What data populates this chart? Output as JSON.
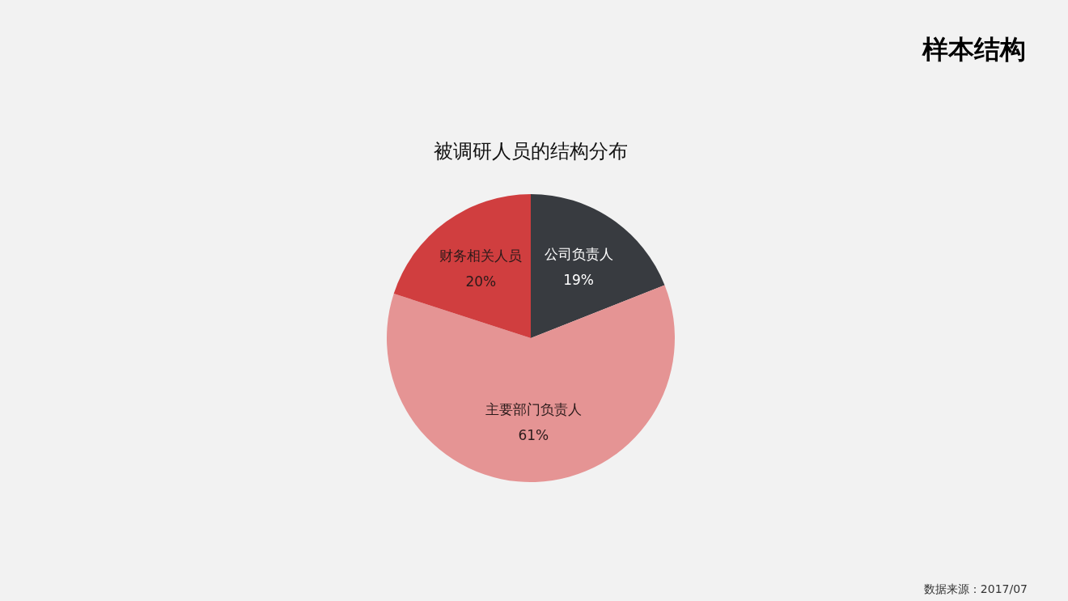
{
  "chart_data": {
    "type": "pie",
    "title": "被调研人员的结构分布",
    "categories": [
      "公司负责人",
      "主要部门负责人",
      "财务相关人员"
    ],
    "values": [
      19,
      61,
      20
    ],
    "colors": [
      "#383b40",
      "#e59494",
      "#d03e3f"
    ],
    "value_labels": [
      "19%",
      "61%",
      "20%"
    ],
    "annotations": [
      "样本结构",
      "数据来源：2017/07"
    ]
  }
}
